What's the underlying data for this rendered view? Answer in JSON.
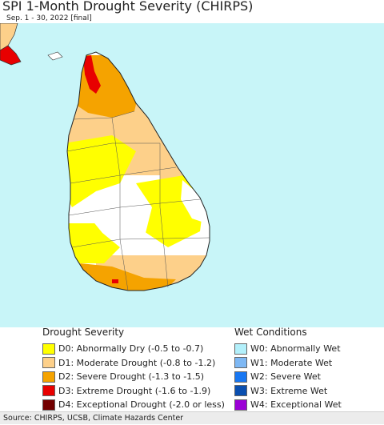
{
  "header": {
    "title": "SPI 1-Month Drought Severity (CHIRPS)",
    "subtitle": "Sep. 1 - 30, 2022 [final]"
  },
  "colors": {
    "ocean": "#c8f5f8",
    "no_drought": "#ffffff",
    "d0": "#ffff00",
    "d1": "#fdd08a",
    "d2": "#f5a300",
    "d3": "#e80000",
    "d4": "#730000"
  },
  "legend": {
    "drought": {
      "heading": "Drought Severity",
      "items": [
        {
          "label": "D0: Abnormally Dry (-0.5 to -0.7)",
          "color": "#ffff00"
        },
        {
          "label": "D1: Moderate Drought (-0.8 to -1.2)",
          "color": "#fdd08a"
        },
        {
          "label": "D2: Severe Drought (-1.3 to -1.5)",
          "color": "#f5a300"
        },
        {
          "label": "D3: Extreme Drought (-1.6 to -1.9)",
          "color": "#e80000"
        },
        {
          "label": "D4: Exceptional Drought (-2.0 or less)",
          "color": "#730000"
        }
      ]
    },
    "wet": {
      "heading": "Wet Conditions",
      "items": [
        {
          "label": "W0: Abnormally Wet",
          "color": "#b3f0fb"
        },
        {
          "label": "W1: Moderate Wet",
          "color": "#7eb8f4"
        },
        {
          "label": "W2: Severe Wet",
          "color": "#1877f2"
        },
        {
          "label": "W3: Extreme Wet",
          "color": "#0a4fb0"
        },
        {
          "label": "W4: Exceptional Wet",
          "color": "#9b00d6"
        }
      ]
    }
  },
  "footer": {
    "source": "Source: CHIRPS, UCSB, Climate Hazards Center"
  }
}
